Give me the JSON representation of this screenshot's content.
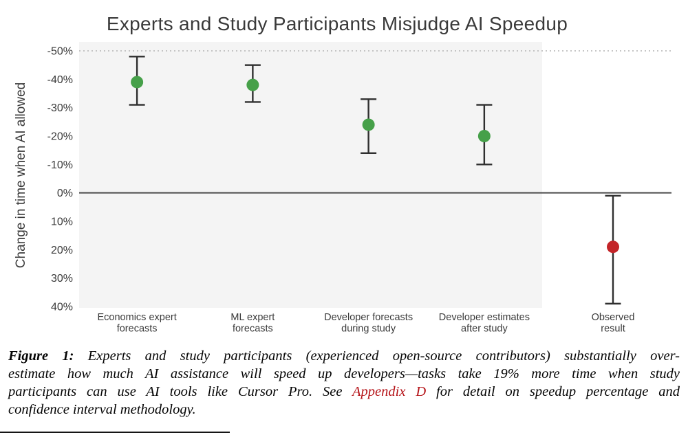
{
  "chart_data": {
    "type": "scatter",
    "title": "Experts and Study Participants Misjudge AI Speedup",
    "ylabel": "Change in time when AI allowed",
    "y_axis": {
      "min": -50,
      "max": 40,
      "ticks": [
        -50,
        -40,
        -30,
        -20,
        -10,
        0,
        10,
        20,
        30,
        40
      ],
      "suffix": "%",
      "orientation": "negative-values-at-top"
    },
    "top_gridline": -50,
    "zero_line": 0,
    "grid": "dashed line at -50, solid dark line at 0",
    "legend": "none",
    "series": [
      {
        "name": "Economics expert forecasts",
        "label_lines": [
          "Economics expert",
          "forecasts"
        ],
        "value": -39,
        "ci": [
          -48,
          -31
        ],
        "color": "#46a049",
        "panel": "main"
      },
      {
        "name": "ML expert forecasts",
        "label_lines": [
          "ML expert",
          "forecasts"
        ],
        "value": -38,
        "ci": [
          -45,
          -32
        ],
        "color": "#46a049",
        "panel": "main"
      },
      {
        "name": "Developer forecasts during study",
        "label_lines": [
          "Developer forecasts",
          "during study"
        ],
        "value": -24,
        "ci": [
          -33,
          -14
        ],
        "color": "#46a049",
        "panel": "main"
      },
      {
        "name": "Developer estimates after study",
        "label_lines": [
          "Developer estimates",
          "after study"
        ],
        "value": -20,
        "ci": [
          -31,
          -10
        ],
        "color": "#46a049",
        "panel": "main"
      },
      {
        "name": "Observed result",
        "label_lines": [
          "Observed",
          "result"
        ],
        "value": 19,
        "ci": [
          1,
          39
        ],
        "color": "#c32428",
        "panel": "right"
      }
    ],
    "colors": {
      "point_green": "#46a049",
      "point_red": "#c32428",
      "error_bar": "#2f2f2f",
      "panel_bg": "#f4f4f4",
      "zero_line": "#4a4a4a",
      "dashed_grid": "#b3b3b3"
    }
  },
  "caption": {
    "lines": [
      [
        {
          "t": "Figure 1:",
          "s": "bold"
        },
        {
          "t": " Experts and study participants (experienced open-source contributors) substantially over-",
          "s": "n"
        }
      ],
      [
        {
          "t": "estimate how much AI assistance will speed up developers—tasks take 19% more time when study",
          "s": "n"
        }
      ],
      [
        {
          "t": "participants can use AI tools like Cursor Pro. See ",
          "s": "n"
        },
        {
          "t": "Appendix D",
          "s": "link"
        },
        {
          "t": " for detail on speedup percentage and",
          "s": "n"
        }
      ],
      [
        {
          "t": "confidence interval methodology.",
          "s": "n"
        }
      ]
    ]
  }
}
